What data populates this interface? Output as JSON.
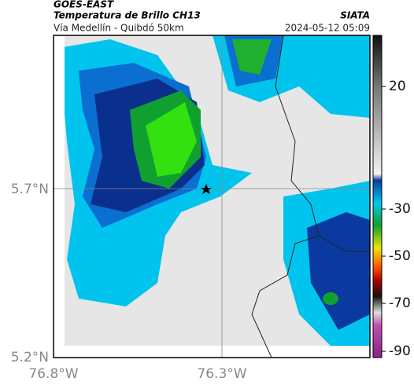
{
  "header": {
    "source": "GOES-EAST",
    "title": "Temperatura de Brillo CH13",
    "organization": "SIATA",
    "subtitle": "Vía Medellín - Quibdó 50km",
    "timestamp": "2024-05-12 05:09"
  },
  "map": {
    "lat_labels": [
      "5.7°N",
      "5.2°N"
    ],
    "lon_labels": [
      "76.8°W",
      "76.3°W"
    ]
  },
  "colorbar": {
    "ticks": [
      20,
      -30,
      -50,
      -70,
      -90
    ]
  }
}
